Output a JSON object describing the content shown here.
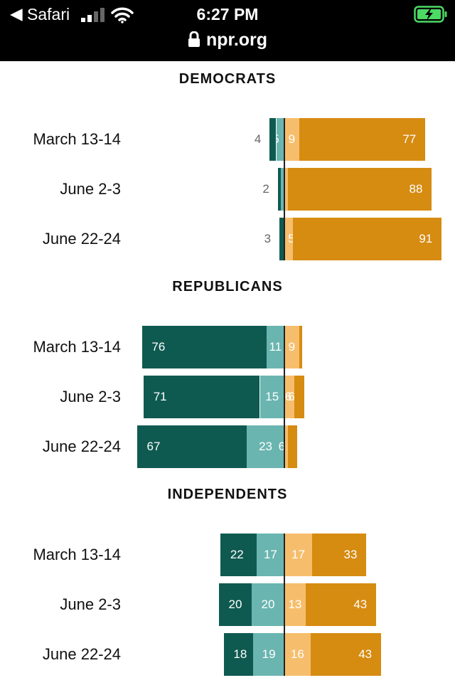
{
  "status_bar": {
    "back_glyph": "◀",
    "carrier": "Safari",
    "time": "6:27 PM",
    "url": "npr.org",
    "icons": [
      "signal-icon",
      "wifi-icon",
      "battery-charging-icon",
      "lock-icon"
    ]
  },
  "colors": {
    "strong_oppose": "#0f5a50",
    "oppose": "#6ab5b0",
    "support": "#f6be6c",
    "strong_support": "#d68b11"
  },
  "chart_data": {
    "type": "bar",
    "stacking": "diverging",
    "categories": [
      "March 13-14",
      "June 2-3",
      "June 22-24"
    ],
    "groups": [
      {
        "title": "DEMOCRATS",
        "rows": [
          {
            "label": "March 13-14",
            "strong_oppose": 4,
            "oppose": 5,
            "support": 9,
            "strong_support": 77
          },
          {
            "label": "June 2-3",
            "strong_oppose": 2,
            "oppose": 2,
            "support": 2,
            "strong_support": 88
          },
          {
            "label": "June 22-24",
            "strong_oppose": 3,
            "oppose": 0,
            "support": 5,
            "strong_support": 91
          }
        ]
      },
      {
        "title": "REPUBLICANS",
        "rows": [
          {
            "label": "March 13-14",
            "strong_oppose": 76,
            "oppose": 11,
            "support": 9,
            "strong_support": 2
          },
          {
            "label": "June 2-3",
            "strong_oppose": 71,
            "oppose": 15,
            "support": 6,
            "strong_support": 6
          },
          {
            "label": "June 22-24",
            "strong_oppose": 67,
            "oppose": 23,
            "support": 2,
            "strong_support": 6
          }
        ]
      },
      {
        "title": "INDEPENDENTS",
        "rows": [
          {
            "label": "March 13-14",
            "strong_oppose": 22,
            "oppose": 17,
            "support": 17,
            "strong_support": 33
          },
          {
            "label": "June 2-3",
            "strong_oppose": 20,
            "oppose": 20,
            "support": 13,
            "strong_support": 43
          },
          {
            "label": "June 22-24",
            "strong_oppose": 18,
            "oppose": 19,
            "support": 16,
            "strong_support": 43
          }
        ]
      }
    ],
    "value_labels": [
      [
        {
          "strong_oppose": "4",
          "oppose": "5",
          "support": "9",
          "strong_support": "77"
        },
        {
          "strong_oppose": "2",
          "oppose": "",
          "support": "",
          "strong_support": "88"
        },
        {
          "strong_oppose": "3",
          "oppose": "",
          "support": "5",
          "strong_support": "91"
        }
      ],
      [
        {
          "strong_oppose": "76",
          "oppose": "11",
          "support": "9",
          "strong_support": ""
        },
        {
          "strong_oppose": "71",
          "oppose": "15",
          "support": "6",
          "strong_support": "6"
        },
        {
          "strong_oppose": "67",
          "oppose": "23",
          "support": "",
          "strong_support": "6"
        }
      ],
      [
        {
          "strong_oppose": "22",
          "oppose": "17",
          "support": "17",
          "strong_support": "33"
        },
        {
          "strong_oppose": "20",
          "oppose": "20",
          "support": "13",
          "strong_support": "43"
        },
        {
          "strong_oppose": "18",
          "oppose": "19",
          "support": "16",
          "strong_support": "43"
        }
      ]
    ],
    "external_labels": [
      "strong_oppose"
    ],
    "external_label_groups": [
      0
    ],
    "xlim": [
      -100,
      100
    ],
    "grid": false
  }
}
